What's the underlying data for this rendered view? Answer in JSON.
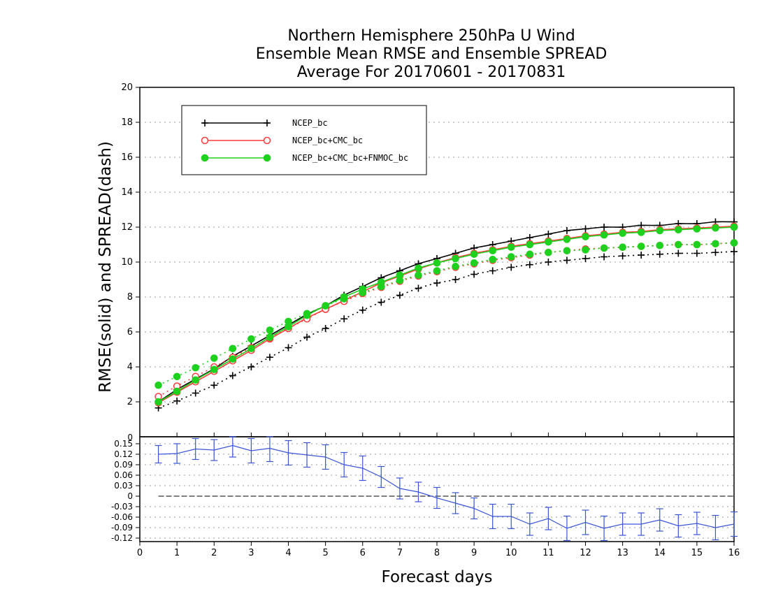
{
  "chart_data": [
    {
      "type": "line",
      "title": [
        "Northern Hemisphere 250hPa U Wind",
        "Ensemble Mean RMSE and Ensemble SPREAD",
        "Average For 20170601 - 20170831"
      ],
      "ylabel": "RMSE(solid) and SPREAD(dash)",
      "xlim": [
        0,
        16
      ],
      "ylim": [
        0,
        20
      ],
      "yticks": [
        "2",
        "4",
        "6",
        "8",
        "10",
        "12",
        "14",
        "16",
        "18",
        "20"
      ],
      "grid": true,
      "legend_position": "top-left",
      "x": [
        0.5,
        1,
        1.5,
        2,
        2.5,
        3,
        3.5,
        4,
        4.5,
        5,
        5.5,
        6,
        6.5,
        7,
        7.5,
        8,
        8.5,
        9,
        9.5,
        10,
        10.5,
        11,
        11.5,
        12,
        12.5,
        13,
        13.5,
        14,
        14.5,
        15,
        15.5,
        16
      ],
      "series": [
        {
          "name": "NCEP_bc",
          "color": "#000000",
          "marker": "plus",
          "rmse": [
            2.0,
            2.7,
            3.3,
            3.9,
            4.6,
            5.2,
            5.8,
            6.4,
            7.0,
            7.5,
            8.1,
            8.6,
            9.1,
            9.5,
            9.9,
            10.2,
            10.5,
            10.8,
            11.0,
            11.2,
            11.4,
            11.6,
            11.8,
            11.9,
            12.0,
            12.0,
            12.1,
            12.1,
            12.2,
            12.2,
            12.3,
            12.3
          ],
          "spread": [
            1.65,
            2.05,
            2.5,
            2.95,
            3.5,
            4.0,
            4.55,
            5.1,
            5.7,
            6.2,
            6.75,
            7.25,
            7.7,
            8.1,
            8.5,
            8.8,
            9.0,
            9.3,
            9.5,
            9.7,
            9.85,
            10.0,
            10.1,
            10.2,
            10.3,
            10.35,
            10.4,
            10.45,
            10.5,
            10.5,
            10.55,
            10.6
          ]
        },
        {
          "name": "NCEP_bc+CMC_bc",
          "color": "#ff3b3b",
          "marker": "open-circle",
          "rmse": [
            1.95,
            2.55,
            3.15,
            3.75,
            4.35,
            4.95,
            5.6,
            6.2,
            6.8,
            7.3,
            7.8,
            8.3,
            8.8,
            9.2,
            9.6,
            9.95,
            10.25,
            10.5,
            10.7,
            10.9,
            11.05,
            11.2,
            11.35,
            11.5,
            11.6,
            11.7,
            11.75,
            11.85,
            11.9,
            11.95,
            12.0,
            12.05
          ],
          "spread": [
            2.3,
            2.9,
            3.45,
            4.0,
            4.55,
            5.1,
            5.65,
            6.2,
            6.75,
            7.3,
            7.75,
            8.2,
            8.55,
            8.9,
            9.2,
            9.45,
            9.7,
            9.9,
            10.1,
            10.25,
            10.4,
            10.55,
            10.65,
            10.75,
            10.8,
            10.85,
            10.9,
            10.95,
            11.0,
            11.0,
            11.05,
            11.1
          ]
        },
        {
          "name": "NCEP_bc+CMC_bc+FNMOC_bc",
          "color": "#1fd11f",
          "marker": "filled-circle",
          "rmse": [
            2.0,
            2.6,
            3.25,
            3.85,
            4.45,
            5.05,
            5.7,
            6.3,
            6.95,
            7.5,
            8.0,
            8.45,
            8.85,
            9.25,
            9.65,
            9.95,
            10.2,
            10.45,
            10.65,
            10.85,
            11.0,
            11.15,
            11.3,
            11.45,
            11.55,
            11.65,
            11.7,
            11.8,
            11.85,
            11.9,
            11.95,
            12.0
          ],
          "spread": [
            2.95,
            3.45,
            3.95,
            4.5,
            5.05,
            5.6,
            6.1,
            6.6,
            7.05,
            7.5,
            7.9,
            8.25,
            8.6,
            8.95,
            9.25,
            9.5,
            9.75,
            9.95,
            10.15,
            10.3,
            10.45,
            10.55,
            10.65,
            10.7,
            10.8,
            10.85,
            10.9,
            10.95,
            11.0,
            11.0,
            11.05,
            11.1
          ]
        }
      ]
    },
    {
      "type": "line",
      "xlabel": "Forecast days",
      "xticks": [
        "0",
        "1",
        "2",
        "3",
        "4",
        "5",
        "6",
        "7",
        "8",
        "9",
        "10",
        "11",
        "12",
        "13",
        "14",
        "15",
        "16"
      ],
      "yticks": [
        "-0.12",
        "-0.09",
        "-0.06",
        "-0.03",
        "0",
        "0.03",
        "0.06",
        "0.09",
        "0.12",
        "0.15"
      ],
      "ytop_label": "0",
      "ylim": [
        -0.13,
        0.17
      ],
      "grid": true,
      "reference_line": 0,
      "series": [
        {
          "color": "#3a55d6",
          "x": [
            0.5,
            1,
            1.5,
            2,
            2.5,
            3,
            3.5,
            4,
            4.5,
            5,
            5.5,
            6,
            6.5,
            7,
            7.5,
            8,
            8.5,
            9,
            9.5,
            10,
            10.5,
            11,
            11.5,
            12,
            12.5,
            13,
            13.5,
            14,
            14.5,
            15,
            15.5,
            16
          ],
          "values": [
            0.12,
            0.122,
            0.135,
            0.132,
            0.145,
            0.13,
            0.137,
            0.124,
            0.118,
            0.112,
            0.09,
            0.08,
            0.055,
            0.022,
            0.012,
            -0.005,
            -0.02,
            -0.035,
            -0.058,
            -0.058,
            -0.08,
            -0.064,
            -0.092,
            -0.075,
            -0.092,
            -0.08,
            -0.08,
            -0.068,
            -0.085,
            -0.078,
            -0.09,
            -0.08
          ],
          "error": [
            0.025,
            0.028,
            0.03,
            0.03,
            0.033,
            0.035,
            0.038,
            0.035,
            0.035,
            0.035,
            0.035,
            0.035,
            0.03,
            0.03,
            0.028,
            0.03,
            0.03,
            0.03,
            0.035,
            0.035,
            0.032,
            0.032,
            0.035,
            0.035,
            0.035,
            0.032,
            0.032,
            0.032,
            0.032,
            0.032,
            0.035,
            0.035
          ]
        }
      ]
    }
  ]
}
